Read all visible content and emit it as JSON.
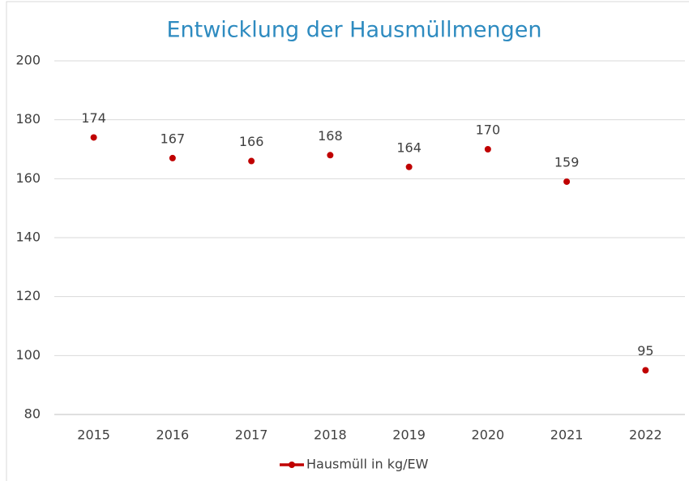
{
  "chart_data": {
    "type": "line",
    "title": "Entwicklung der Hausmüllmengen",
    "categories": [
      "2015",
      "2016",
      "2017",
      "2018",
      "2019",
      "2020",
      "2021",
      "2022"
    ],
    "series": [
      {
        "name": "Hausmüll in kg/EW",
        "color": "#c00000",
        "values": [
          174,
          167,
          166,
          168,
          164,
          170,
          159,
          95
        ]
      }
    ],
    "ylim": [
      80,
      200
    ],
    "yticks": [
      80,
      100,
      120,
      140,
      160,
      180,
      200
    ],
    "grid": true,
    "legend": "bottom"
  }
}
